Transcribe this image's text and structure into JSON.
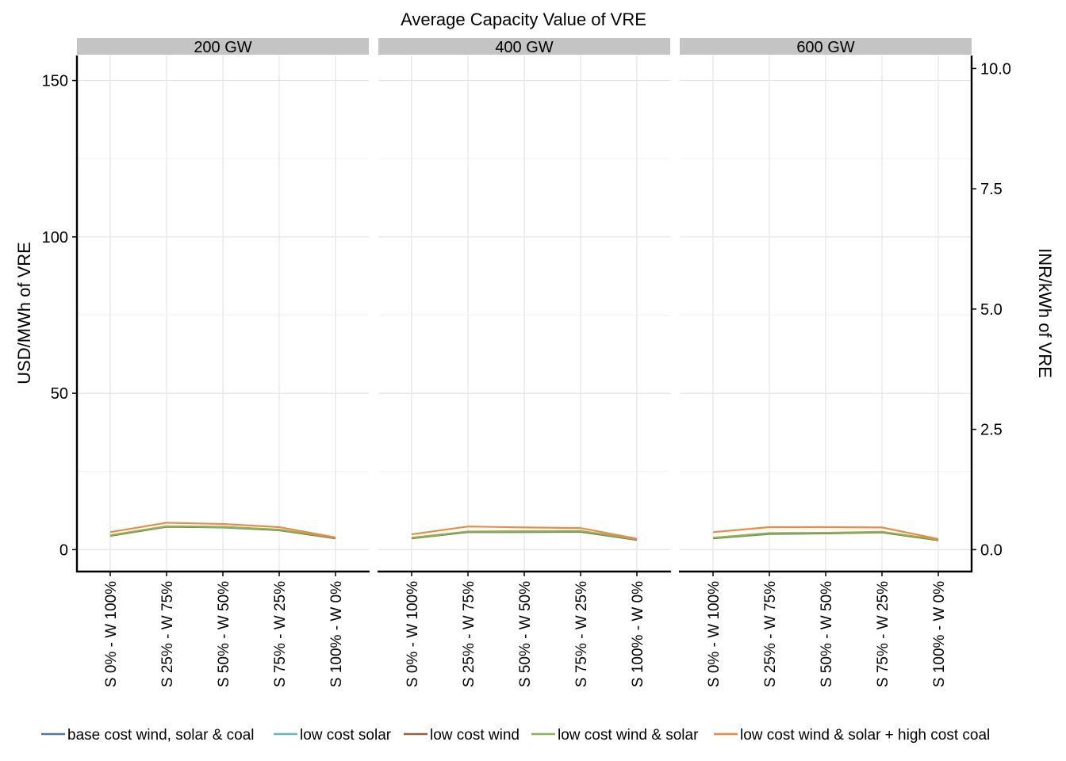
{
  "chart_data": {
    "type": "line",
    "title": "Average Capacity Value of VRE",
    "ylabel": "USD/MWh of VRE",
    "ylabel_secondary": "INR/kWh of VRE",
    "ylim": [
      -7,
      158
    ],
    "y_ticks": [
      0,
      50,
      100,
      150
    ],
    "y_tick_labels": [
      "0",
      "50",
      "100",
      "150"
    ],
    "y2_ticks": [
      0.0,
      2.5,
      5.0,
      7.5,
      10.0
    ],
    "y2_tick_labels": [
      "0.0",
      "2.5",
      "5.0",
      "7.5",
      "10.0"
    ],
    "usd_per_inr_kwh": 15.3846,
    "grid": true,
    "legend_position": "bottom",
    "categories": [
      "S 0% - W 100%",
      "S 25% - W 75%",
      "S 50% - W 50%",
      "S 75% - W 25%",
      "S 100% - W 0%"
    ],
    "panels": [
      {
        "label": "200 GW",
        "series": [
          {
            "name": "base cost wind, solar & coal",
            "values": [
              4.4,
              7.3,
              7.1,
              6.2,
              3.6
            ]
          },
          {
            "name": "low cost solar",
            "values": [
              4.5,
              7.4,
              7.2,
              6.3,
              3.7
            ]
          },
          {
            "name": "low cost wind",
            "values": [
              4.5,
              7.4,
              7.3,
              6.3,
              3.7
            ]
          },
          {
            "name": "low cost wind & solar",
            "values": [
              4.6,
              7.5,
              7.3,
              6.4,
              3.8
            ]
          },
          {
            "name": "low cost wind & solar + high cost coal",
            "values": [
              5.6,
              8.6,
              8.2,
              7.2,
              3.9
            ]
          }
        ]
      },
      {
        "label": "400 GW",
        "series": [
          {
            "name": "base cost wind, solar & coal",
            "values": [
              3.6,
              5.6,
              5.6,
              5.7,
              3.1
            ]
          },
          {
            "name": "low cost solar",
            "values": [
              3.7,
              5.7,
              5.7,
              5.8,
              3.2
            ]
          },
          {
            "name": "low cost wind",
            "values": [
              3.7,
              5.7,
              5.8,
              5.9,
              3.2
            ]
          },
          {
            "name": "low cost wind & solar",
            "values": [
              3.8,
              5.8,
              5.9,
              6.0,
              3.3
            ]
          },
          {
            "name": "low cost wind & solar + high cost coal",
            "values": [
              4.9,
              7.4,
              7.1,
              6.9,
              3.5
            ]
          }
        ]
      },
      {
        "label": "600 GW",
        "series": [
          {
            "name": "base cost wind, solar & coal",
            "values": [
              3.6,
              5.0,
              5.2,
              5.5,
              3.0
            ]
          },
          {
            "name": "low cost solar",
            "values": [
              3.7,
              5.1,
              5.3,
              5.6,
              3.1
            ]
          },
          {
            "name": "low cost wind",
            "values": [
              3.7,
              5.2,
              5.3,
              5.6,
              3.1
            ]
          },
          {
            "name": "low cost wind & solar",
            "values": [
              3.8,
              5.3,
              5.4,
              5.7,
              3.2
            ]
          },
          {
            "name": "low cost wind & solar + high cost coal",
            "values": [
              5.6,
              7.2,
              7.2,
              7.1,
              3.4
            ]
          }
        ]
      }
    ],
    "legend": [
      {
        "name": "base cost wind, solar & coal",
        "color": "#4e79a7"
      },
      {
        "name": "low cost solar",
        "color": "#5fb8b2"
      },
      {
        "name": "low cost wind",
        "color": "#9b5e3c"
      },
      {
        "name": "low cost wind & solar",
        "color": "#8cb54a"
      },
      {
        "name": "low cost wind & solar + high cost coal",
        "color": "#ef8a3c"
      }
    ]
  }
}
